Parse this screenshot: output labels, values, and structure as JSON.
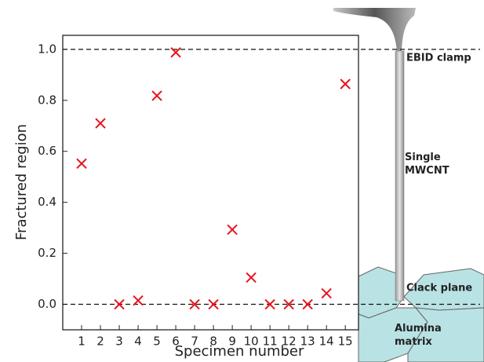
{
  "chart_data": {
    "type": "scatter",
    "xlabel": "Specimen number",
    "ylabel": "Fractured region",
    "x": [
      1,
      2,
      3,
      4,
      5,
      6,
      7,
      8,
      9,
      10,
      11,
      12,
      13,
      14,
      15
    ],
    "series": [
      {
        "color": "#e8141c",
        "values": [
          0.552,
          0.71,
          0,
          0.015,
          0.818,
          0.988,
          0,
          0,
          0.293,
          0.105,
          0,
          0,
          0,
          0.043,
          0.864
        ]
      }
    ],
    "xlim": [
      0,
      15.7
    ],
    "ylim": [
      -0.1,
      1.055
    ],
    "xticks": [
      1,
      2,
      3,
      4,
      5,
      6,
      7,
      8,
      9,
      10,
      11,
      12,
      13,
      14,
      15
    ],
    "yticks": [
      {
        "value": 0,
        "label": "0.0"
      },
      0.2,
      0.4,
      0.6,
      0.8,
      {
        "value": 1,
        "label": "1.0"
      }
    ],
    "hlines": [
      0,
      1
    ],
    "annotations": [
      "EBID clamp",
      "Single MWCNT",
      "Clack plane",
      "Alumina matrix"
    ]
  }
}
